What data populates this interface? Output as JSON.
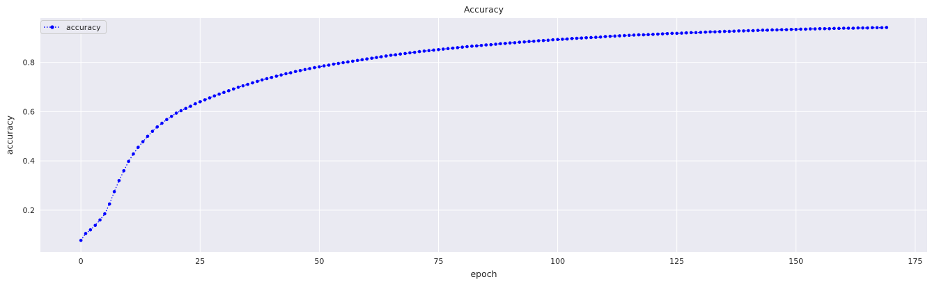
{
  "chart_data": {
    "type": "line",
    "title": "Accuracy",
    "xlabel": "epoch",
    "ylabel": "accuracy",
    "xlim": [
      -8.5,
      177.5
    ],
    "ylim": [
      0.03,
      0.98
    ],
    "xticks": [
      0,
      25,
      50,
      75,
      100,
      125,
      150,
      175
    ],
    "yticks": [
      0.2,
      0.4,
      0.6,
      0.8
    ],
    "xtick_labels": [
      "0",
      "25",
      "50",
      "75",
      "100",
      "125",
      "150",
      "175"
    ],
    "ytick_labels": [
      "0.2",
      "0.4",
      "0.6",
      "0.8"
    ],
    "grid": true,
    "legend_position": "top-left",
    "line_style": "dotted",
    "marker": "circle",
    "series": [
      {
        "name": "accuracy",
        "color": "#0000ff",
        "x": [
          0,
          1,
          2,
          3,
          4,
          5,
          6,
          7,
          8,
          9,
          10,
          11,
          12,
          13,
          14,
          15,
          16,
          17,
          18,
          19,
          20,
          21,
          22,
          23,
          24,
          25,
          26,
          27,
          28,
          29,
          30,
          31,
          32,
          33,
          34,
          35,
          36,
          37,
          38,
          39,
          40,
          41,
          42,
          43,
          44,
          45,
          46,
          47,
          48,
          49,
          50,
          51,
          52,
          53,
          54,
          55,
          56,
          57,
          58,
          59,
          60,
          61,
          62,
          63,
          64,
          65,
          66,
          67,
          68,
          69,
          70,
          71,
          72,
          73,
          74,
          75,
          76,
          77,
          78,
          79,
          80,
          81,
          82,
          83,
          84,
          85,
          86,
          87,
          88,
          89,
          90,
          91,
          92,
          93,
          94,
          95,
          96,
          97,
          98,
          99,
          100,
          101,
          102,
          103,
          104,
          105,
          106,
          107,
          108,
          109,
          110,
          111,
          112,
          113,
          114,
          115,
          116,
          117,
          118,
          119,
          120,
          121,
          122,
          123,
          124,
          125,
          126,
          127,
          128,
          129,
          130,
          131,
          132,
          133,
          134,
          135,
          136,
          137,
          138,
          139,
          140,
          141,
          142,
          143,
          144,
          145,
          146,
          147,
          148,
          149,
          150,
          151,
          152,
          153,
          154,
          155,
          156,
          157,
          158,
          159,
          160,
          161,
          162,
          163,
          164,
          165,
          166,
          167,
          168,
          169
        ],
        "values": [
          0.077,
          0.105,
          0.12,
          0.138,
          0.16,
          0.185,
          0.225,
          0.275,
          0.32,
          0.36,
          0.398,
          0.428,
          0.455,
          0.478,
          0.5,
          0.52,
          0.538,
          0.553,
          0.568,
          0.581,
          0.594,
          0.604,
          0.613,
          0.622,
          0.632,
          0.64,
          0.648,
          0.656,
          0.664,
          0.671,
          0.678,
          0.685,
          0.692,
          0.699,
          0.705,
          0.711,
          0.717,
          0.723,
          0.729,
          0.734,
          0.739,
          0.744,
          0.749,
          0.754,
          0.758,
          0.763,
          0.767,
          0.771,
          0.775,
          0.779,
          0.782,
          0.786,
          0.789,
          0.793,
          0.796,
          0.799,
          0.802,
          0.805,
          0.808,
          0.811,
          0.814,
          0.817,
          0.82,
          0.823,
          0.826,
          0.829,
          0.831,
          0.834,
          0.836,
          0.839,
          0.841,
          0.844,
          0.846,
          0.848,
          0.85,
          0.852,
          0.854,
          0.856,
          0.858,
          0.86,
          0.862,
          0.864,
          0.866,
          0.867,
          0.869,
          0.871,
          0.872,
          0.874,
          0.876,
          0.877,
          0.879,
          0.88,
          0.882,
          0.883,
          0.885,
          0.886,
          0.888,
          0.889,
          0.89,
          0.892,
          0.893,
          0.894,
          0.895,
          0.897,
          0.898,
          0.899,
          0.9,
          0.901,
          0.902,
          0.903,
          0.905,
          0.906,
          0.907,
          0.908,
          0.909,
          0.91,
          0.911,
          0.912,
          0.912,
          0.913,
          0.914,
          0.915,
          0.916,
          0.917,
          0.918,
          0.918,
          0.919,
          0.92,
          0.921,
          0.921,
          0.922,
          0.923,
          0.924,
          0.924,
          0.925,
          0.926,
          0.926,
          0.927,
          0.928,
          0.928,
          0.929,
          0.929,
          0.93,
          0.931,
          0.931,
          0.932,
          0.932,
          0.933,
          0.933,
          0.934,
          0.934,
          0.935,
          0.935,
          0.936,
          0.936,
          0.937,
          0.937,
          0.937,
          0.938,
          0.938,
          0.939,
          0.939,
          0.939,
          0.94,
          0.94,
          0.94,
          0.941,
          0.941,
          0.941,
          0.942
        ]
      }
    ]
  }
}
